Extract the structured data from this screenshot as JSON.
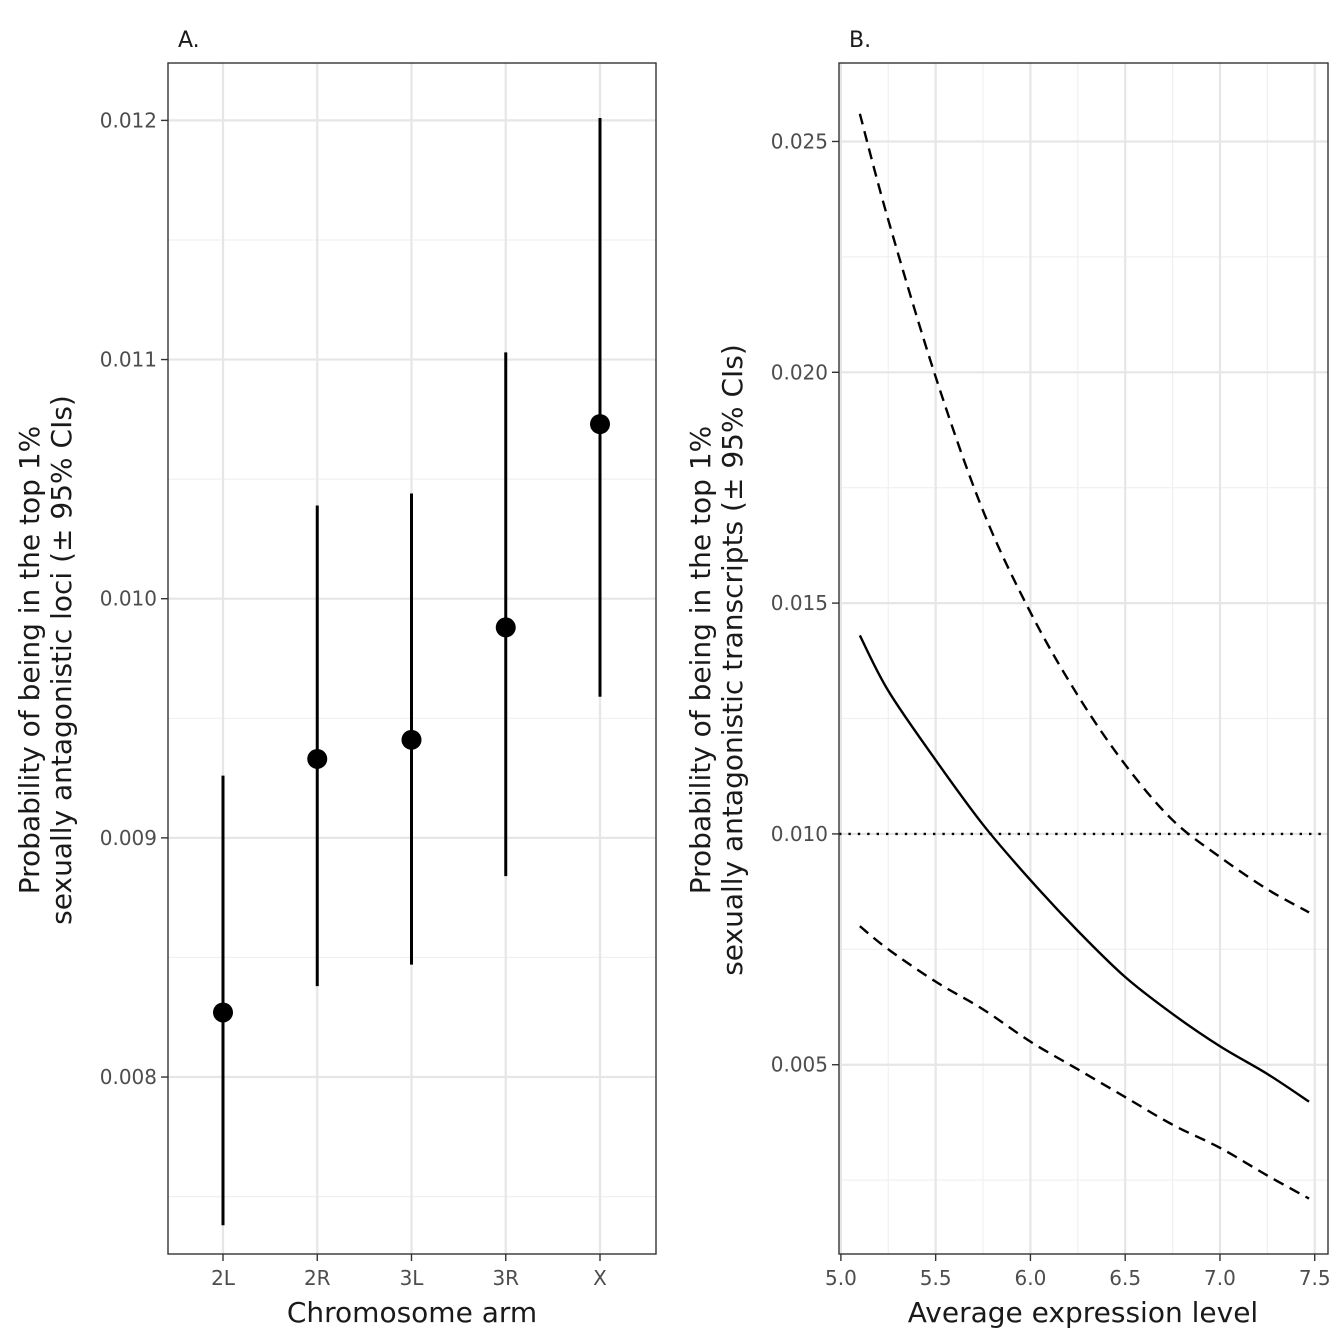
{
  "chart_data": [
    {
      "panel": "A.",
      "type": "scatter",
      "xlabel": "Chromosome arm",
      "ylabel_lines": [
        "Probability of being in the top 1%",
        "sexually antagonistic loci (± 95% CIs)"
      ],
      "categories": [
        "2L",
        "2R",
        "3L",
        "3R",
        "X"
      ],
      "values": [
        0.00827,
        0.00933,
        0.00941,
        0.00988,
        0.01073
      ],
      "ci_low": [
        0.00738,
        0.00838,
        0.00847,
        0.00884,
        0.00959
      ],
      "ci_high": [
        0.00926,
        0.01039,
        0.01044,
        0.01103,
        0.01201
      ],
      "ylim": [
        0.00726,
        0.01224
      ],
      "yticks": [
        0.008,
        0.009,
        0.01,
        0.011,
        0.012
      ],
      "ytick_labels": [
        "0.008",
        "0.009",
        "0.010",
        "0.011",
        "0.012"
      ],
      "grid": true,
      "color": "#000000"
    },
    {
      "panel": "B.",
      "type": "line",
      "xlabel": "Average expression level",
      "ylabel_lines": [
        "Probability of being in the top 1%",
        "sexually antagonistic transcripts (± 95% CIs)"
      ],
      "x": [
        5.1,
        5.25,
        5.5,
        5.75,
        6.0,
        6.25,
        6.5,
        6.75,
        7.0,
        7.25,
        7.47
      ],
      "series": [
        {
          "role": "upper-ci",
          "style": "dashed",
          "values": [
            0.0256,
            0.0233,
            0.0199,
            0.017,
            0.0148,
            0.013,
            0.0115,
            0.0103,
            0.0095,
            0.0088,
            0.0083
          ]
        },
        {
          "role": "estimate",
          "style": "solid",
          "values": [
            0.0143,
            0.0131,
            0.0116,
            0.0102,
            0.009,
            0.0079,
            0.0069,
            0.0061,
            0.0054,
            0.0048,
            0.0042
          ]
        },
        {
          "role": "lower-ci",
          "style": "dashed",
          "values": [
            0.008,
            0.0075,
            0.0068,
            0.0062,
            0.0055,
            0.0049,
            0.0043,
            0.0037,
            0.0032,
            0.0026,
            0.0021
          ]
        }
      ],
      "hline": {
        "y": 0.01,
        "style": "dotted"
      },
      "xlim": [
        4.99,
        7.57
      ],
      "ylim": [
        0.0009,
        0.0267
      ],
      "xticks": [
        5.0,
        5.5,
        6.0,
        6.5,
        7.0,
        7.5
      ],
      "xtick_labels": [
        "5.0",
        "5.5",
        "6.0",
        "6.5",
        "7.0",
        "7.5"
      ],
      "yticks": [
        0.005,
        0.01,
        0.015,
        0.02,
        0.025
      ],
      "ytick_labels": [
        "0.005",
        "0.010",
        "0.015",
        "0.020",
        "0.025"
      ],
      "grid": true,
      "color": "#000000"
    }
  ]
}
